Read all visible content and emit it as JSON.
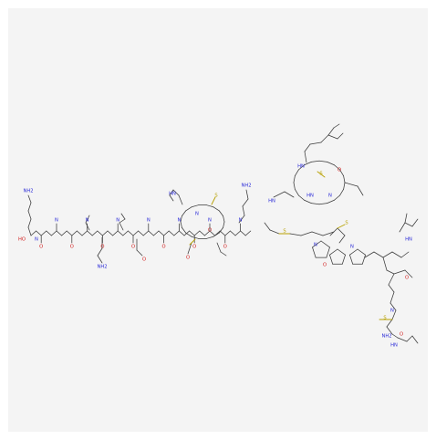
{
  "image": {
    "description_free": true,
    "background_color": "#f4f4f4",
    "atom_colors": {
      "N": "#2a2ad8",
      "O": "#d21d1d",
      "S": "#b7a000",
      "C": "#3a3a3a"
    }
  },
  "atom_labels": {
    "amine": "NH2",
    "hydroxyl": "HO",
    "oxygen": "O",
    "nh": "HN",
    "n": "N",
    "h": "H",
    "s": "S"
  }
}
